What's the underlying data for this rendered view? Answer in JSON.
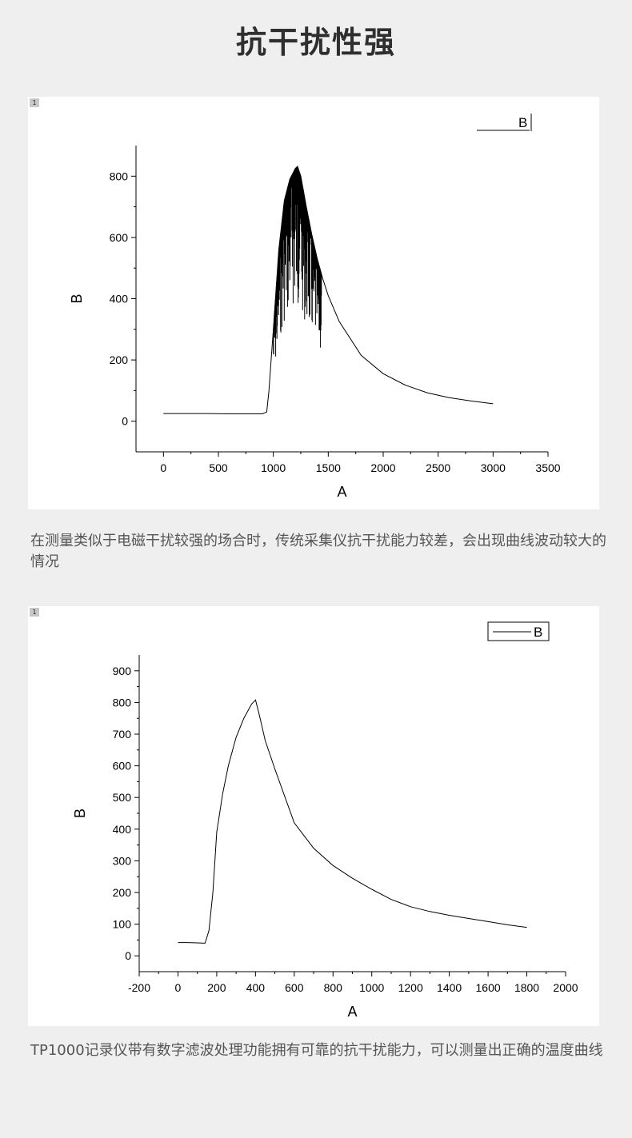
{
  "page": {
    "title": "抗干扰性强",
    "caption1": "在测量类似于电磁干扰较强的场合时，传统采集仪抗干扰能力较差，会出现曲线波动较大的情况",
    "caption2": "TP1000记录仪带有数字滤波处理功能拥有可靠的抗干扰能力，可以测量出正确的温度曲线",
    "panel_tag": "1"
  },
  "chart_data": [
    {
      "type": "line",
      "xlabel": "A",
      "ylabel": "B",
      "legend": [
        "B"
      ],
      "legend_position": "top-right",
      "xlim": [
        -250,
        3500
      ],
      "ylim": [
        -100,
        900
      ],
      "xticks": [
        0,
        500,
        1000,
        1500,
        2000,
        2500,
        3000,
        3500
      ],
      "yticks": [
        0,
        200,
        400,
        600,
        800
      ],
      "grid": false,
      "noisy_region": [
        1000,
        1440
      ],
      "series": [
        {
          "name": "B",
          "x": [
            0,
            200,
            400,
            600,
            800,
            900,
            940,
            960,
            980,
            1000,
            1050,
            1100,
            1150,
            1200,
            1220,
            1250,
            1300,
            1350,
            1400,
            1450,
            1500,
            1600,
            1800,
            2000,
            2200,
            2400,
            2600,
            2800,
            3000
          ],
          "y": [
            25,
            25,
            25,
            24,
            24,
            24,
            30,
            100,
            200,
            300,
            560,
            720,
            790,
            825,
            832,
            800,
            700,
            610,
            530,
            465,
            410,
            325,
            215,
            155,
            118,
            93,
            77,
            66,
            57
          ]
        }
      ]
    },
    {
      "type": "line",
      "xlabel": "A",
      "ylabel": "B",
      "legend": [
        "B"
      ],
      "legend_position": "top-right",
      "xlim": [
        -200,
        2000
      ],
      "ylim": [
        -50,
        950
      ],
      "xticks": [
        -200,
        0,
        200,
        400,
        600,
        800,
        1000,
        1200,
        1400,
        1600,
        1800,
        2000
      ],
      "yticks": [
        0,
        100,
        200,
        300,
        400,
        500,
        600,
        700,
        800,
        900
      ],
      "grid": false,
      "series": [
        {
          "name": "B",
          "x": [
            0,
            50,
            100,
            140,
            160,
            180,
            200,
            230,
            260,
            300,
            340,
            380,
            400,
            420,
            450,
            500,
            600,
            700,
            800,
            900,
            1000,
            1100,
            1200,
            1300,
            1400,
            1500,
            1600,
            1700,
            1800
          ],
          "y": [
            42,
            42,
            41,
            40,
            80,
            200,
            390,
            510,
            600,
            690,
            750,
            795,
            808,
            760,
            680,
            590,
            420,
            340,
            285,
            245,
            210,
            178,
            155,
            140,
            128,
            118,
            108,
            98,
            90
          ]
        }
      ]
    }
  ]
}
